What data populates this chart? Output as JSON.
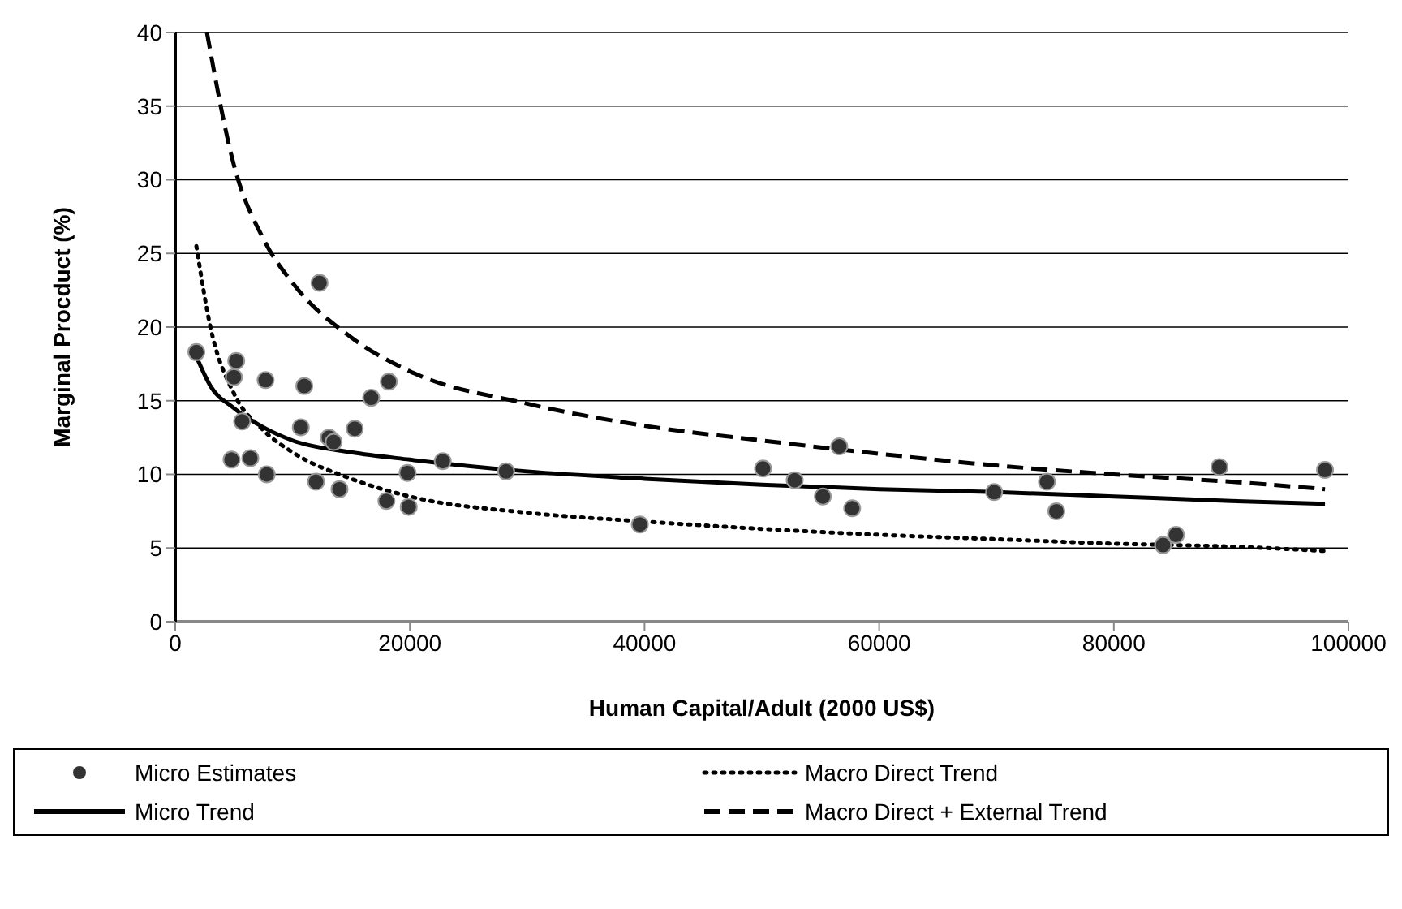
{
  "chart_data": {
    "type": "scatter",
    "xlabel": "Human Capital/Adult (2000 US$)",
    "ylabel": "Marginal Procduct (%)",
    "xlim": [
      0,
      100000
    ],
    "xticks": [
      0,
      20000,
      40000,
      60000,
      80000,
      100000
    ],
    "ylim": [
      0,
      40
    ],
    "yticks": [
      0,
      5,
      10,
      15,
      20,
      25,
      30,
      35,
      40
    ],
    "grid": "y",
    "legend": "bottom",
    "series": [
      {
        "name": "Micro Estimates",
        "color": "#333333",
        "marker": "circle",
        "x": [
          1800,
          5000,
          5200,
          5700,
          4800,
          6400,
          7700,
          7800,
          11000,
          10700,
          12000,
          12300,
          13100,
          13500,
          14000,
          15300,
          16700,
          18000,
          18200,
          19800,
          19900,
          22800,
          28200,
          39600,
          50100,
          52800,
          55200,
          56600,
          57700,
          69800,
          74300,
          75100,
          84200,
          85300,
          89000,
          98000
        ],
        "values": [
          18.3,
          16.6,
          17.7,
          13.6,
          11,
          11.1,
          16.4,
          10,
          16,
          13.2,
          9.5,
          23,
          12.5,
          12.2,
          9,
          13.1,
          15.2,
          8.2,
          16.3,
          10.1,
          7.8,
          10.9,
          10.2,
          6.6,
          10.4,
          9.6,
          8.5,
          11.9,
          7.7,
          8.8,
          9.5,
          7.5,
          5.2,
          5.9,
          10.5,
          10.3
        ]
      },
      {
        "name": "Macro Direct Trend",
        "type": "line",
        "color": "#000000",
        "line_style": "dotted",
        "x": [
          1800,
          3000,
          5000,
          7500,
          10000,
          15000,
          20000,
          30000,
          40000,
          50000,
          60000,
          70000,
          80000,
          90000,
          98000
        ],
        "values": [
          25.5,
          20,
          15.5,
          13,
          11.5,
          9.7,
          8.5,
          7.4,
          6.8,
          6.3,
          5.9,
          5.6,
          5.3,
          5.1,
          4.8
        ]
      },
      {
        "name": "Micro Trend",
        "type": "line",
        "color": "#000000",
        "line_style": "solid",
        "x": [
          1800,
          3000,
          5000,
          7500,
          10000,
          15000,
          20000,
          30000,
          40000,
          50000,
          60000,
          70000,
          80000,
          90000,
          98000
        ],
        "values": [
          18,
          16,
          14.5,
          13.2,
          12.3,
          11.5,
          11,
          10.2,
          9.7,
          9.3,
          9,
          8.8,
          8.5,
          8.2,
          8
        ]
      },
      {
        "name": "Macro Direct + External Trend",
        "type": "line",
        "color": "#000000",
        "line_style": "dashed",
        "x": [
          2700,
          5000,
          7500,
          10000,
          15000,
          20000,
          30000,
          40000,
          50000,
          60000,
          70000,
          80000,
          90000,
          98000
        ],
        "values": [
          40,
          31,
          26,
          23,
          19.3,
          17,
          14.8,
          13.3,
          12.3,
          11.4,
          10.6,
          10,
          9.5,
          9
        ]
      }
    ]
  }
}
